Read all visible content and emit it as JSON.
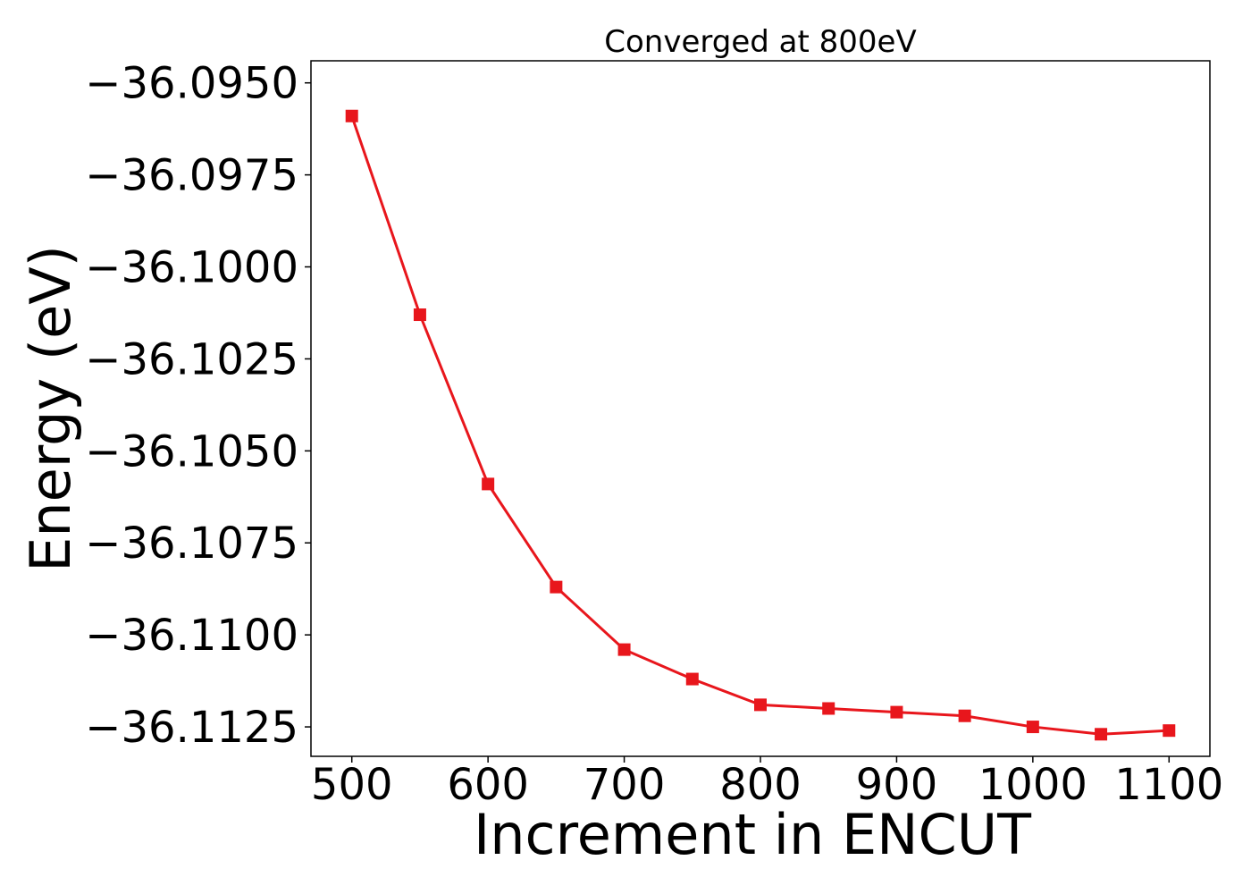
{
  "chart_data": {
    "type": "line",
    "title": "Converged at 800eV",
    "xlabel": "Increment in ENCUT",
    "ylabel": "Energy (eV)",
    "xlim": [
      470,
      1130
    ],
    "ylim": [
      -36.1133,
      -36.0944
    ],
    "x_ticks": [
      500,
      600,
      700,
      800,
      900,
      1000,
      1100
    ],
    "x_tick_labels": [
      "500",
      "600",
      "700",
      "800",
      "900",
      "1000",
      "1100"
    ],
    "y_ticks": [
      -36.095,
      -36.0975,
      -36.1,
      -36.1025,
      -36.105,
      -36.1075,
      -36.11,
      -36.1125
    ],
    "y_tick_labels": [
      "−36.0950",
      "−36.0975",
      "−36.1000",
      "−36.1025",
      "−36.1050",
      "−36.1075",
      "−36.1100",
      "−36.1125"
    ],
    "grid": false,
    "series": [
      {
        "color": "#e8161c",
        "marker": "square",
        "x": [
          500,
          550,
          600,
          650,
          700,
          750,
          800,
          850,
          900,
          950,
          1000,
          1050,
          1100
        ],
        "y": [
          -36.0959,
          -36.1013,
          -36.1059,
          -36.1087,
          -36.1104,
          -36.1112,
          -36.1119,
          -36.112,
          -36.1121,
          -36.1122,
          -36.1125,
          -36.1127,
          -36.1126
        ]
      }
    ]
  }
}
